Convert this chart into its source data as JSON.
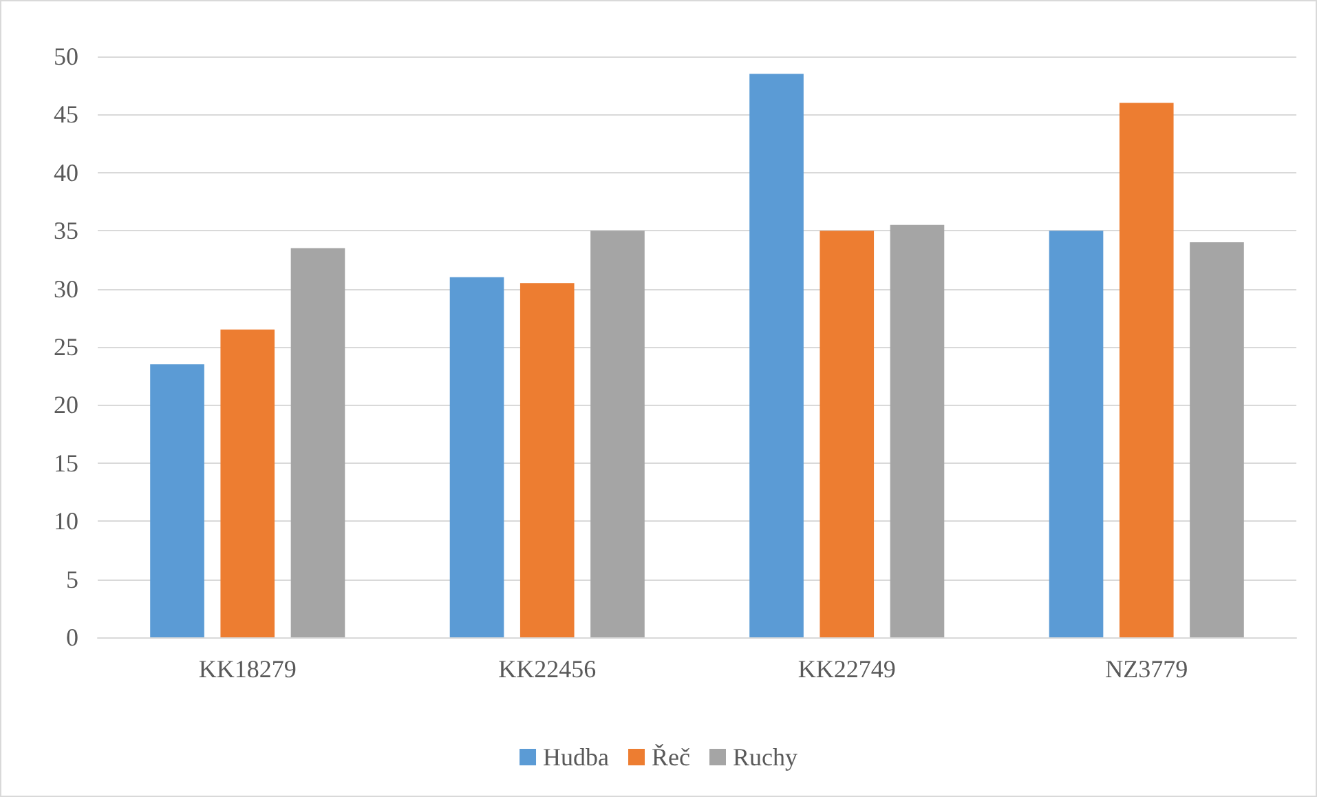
{
  "chart_data": {
    "type": "bar",
    "categories": [
      "KK18279",
      "KK22456",
      "KK22749",
      "NZ3779"
    ],
    "series": [
      {
        "name": "Hudba",
        "color": "#5b9bd5",
        "values": [
          23.5,
          31,
          48.5,
          35
        ]
      },
      {
        "name": "Řeč",
        "color": "#ed7d31",
        "values": [
          26.5,
          30.5,
          35,
          46
        ]
      },
      {
        "name": "Ruchy",
        "color": "#a5a5a5",
        "values": [
          33.5,
          35,
          35.5,
          34
        ]
      }
    ],
    "ylim": [
      0,
      50
    ],
    "yticks": [
      0,
      5,
      10,
      15,
      20,
      25,
      30,
      35,
      40,
      45,
      50
    ],
    "grid": "y",
    "legend": "bottom"
  }
}
